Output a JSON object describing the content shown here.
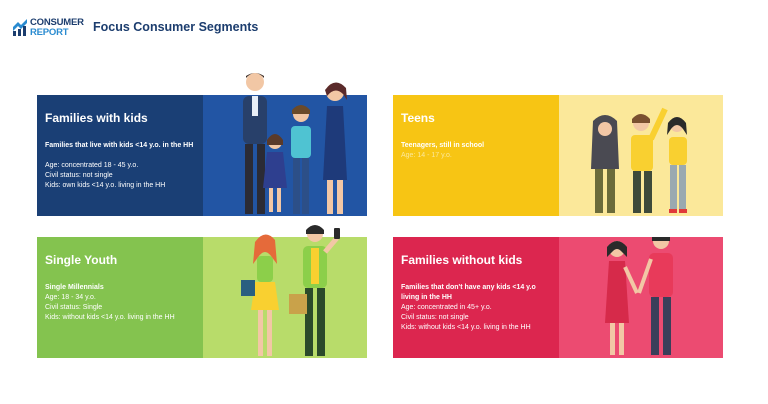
{
  "header": {
    "logo_line1": "CONSUMER",
    "logo_line2": "REPORT",
    "title": "Focus Consumer Segments"
  },
  "colors": {
    "families_with_kids_text": "#1a3f75",
    "families_with_kids_art": "#2255a4",
    "teens_text": "#f7c514",
    "teens_art": "#fbe89a",
    "single_youth_text": "#84c34f",
    "single_youth_art": "#b8dc6a",
    "families_without_kids_text": "#dc264f",
    "families_without_kids_art": "#ec4b71"
  },
  "segments": {
    "families_with_kids": {
      "title": "Families with kids",
      "subtitle": "Families that live with kids <14 y.o. in the HH",
      "age": "Age: concentrated 18 - 45 y.o.",
      "civil": "Civil status: not single",
      "kids": "Kids: own kids <14 y.o. living in the HH",
      "illustration_icon": "family-with-children-icon"
    },
    "teens": {
      "title": "Teens",
      "subtitle": "Teenagers, still in school",
      "age": "Age: 14 - 17 y.o.",
      "illustration_icon": "teenagers-group-icon"
    },
    "single_youth": {
      "title": "Single Youth",
      "subtitle": "Single Millennials",
      "age": "Age: 18 - 34 y.o.",
      "civil": "Civil status: Single",
      "kids": "Kids: without kids <14 y.o. living in the HH",
      "illustration_icon": "young-couple-icon"
    },
    "families_without_kids": {
      "title": "Families without kids",
      "subtitle": "Families that don't have any kids <14 y.o living in the HH",
      "age": "Age: concentrated in 45+ y.o.",
      "civil": "Civil status: not single",
      "kids": "Kids: without kids <14 y.o. living in the HH",
      "illustration_icon": "adult-couple-icon"
    }
  }
}
